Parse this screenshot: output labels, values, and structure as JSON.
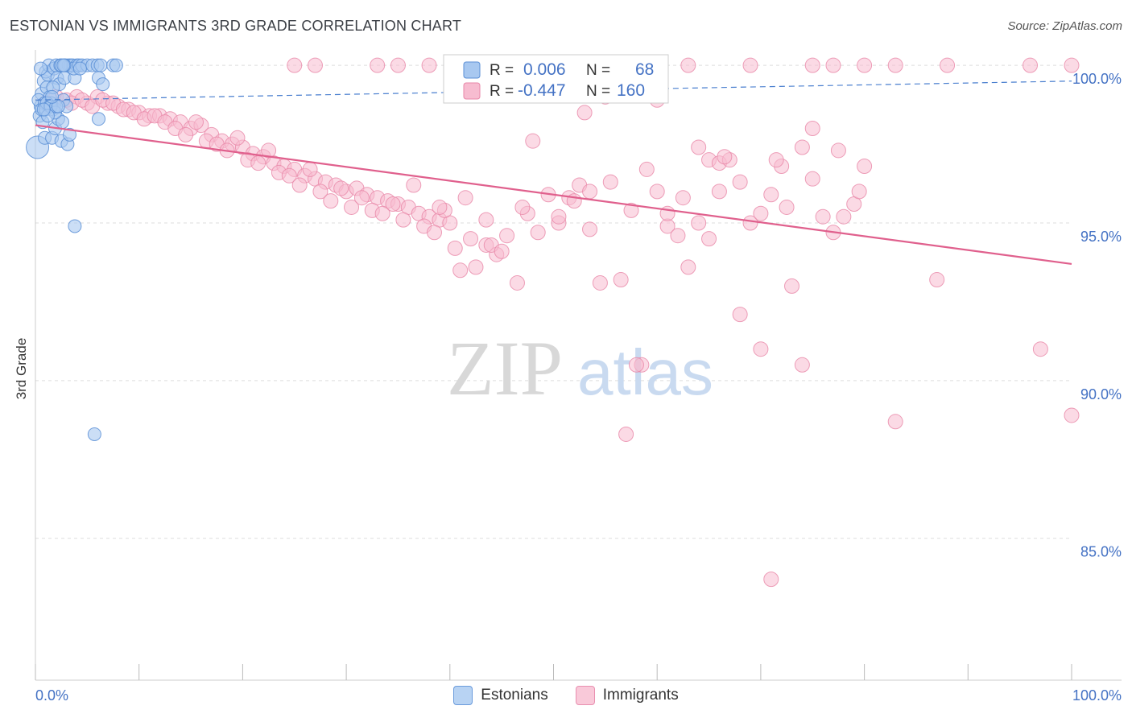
{
  "header": {
    "title": "ESTONIAN VS IMMIGRANTS 3RD GRADE CORRELATION CHART",
    "source": "Source: ZipAtlas.com"
  },
  "watermark": {
    "zip": "ZIP",
    "atlas": "atlas"
  },
  "colors": {
    "blue_fill": "#a8c8f0",
    "blue_stroke": "#5b8fd6",
    "blue_line": "#4a7fcf",
    "pink_fill": "#f7bcd0",
    "pink_stroke": "#e887a8",
    "pink_line": "#e0608d",
    "tick_label": "#4472c4",
    "grid": "#dddddd"
  },
  "legend_box": {
    "rows": [
      {
        "r_label": "R =",
        "r_value": "0.006",
        "n_label": "N =",
        "n_value": "68"
      },
      {
        "r_label": "R =",
        "r_value": "-0.447",
        "n_label": "N =",
        "n_value": "160"
      }
    ]
  },
  "legend_bottom": {
    "items": [
      "Estonians",
      "Immigrants"
    ]
  },
  "chart_data": {
    "type": "scatter",
    "title": "ESTONIAN VS IMMIGRANTS 3RD GRADE CORRELATION CHART",
    "xlabel": "",
    "ylabel": "3rd Grade",
    "xlim": [
      0,
      100
    ],
    "ylim": [
      80.5,
      101
    ],
    "x_tick_labels": [
      "0.0%",
      "100.0%"
    ],
    "y_ticks": [
      100,
      95,
      90,
      85
    ],
    "y_tick_labels": [
      "100.0%",
      "95.0%",
      "90.0%",
      "85.0%"
    ],
    "grid": true,
    "legend_position": "top-center",
    "series": [
      {
        "name": "Estonians",
        "r": 0.006,
        "n": 68,
        "trend": [
          [
            0,
            98.9
          ],
          [
            100,
            99.5
          ]
        ],
        "points": [
          [
            0.2,
            97.4
          ],
          [
            0.4,
            98.4
          ],
          [
            0.5,
            98.7
          ],
          [
            0.6,
            99.1
          ],
          [
            0.7,
            98.2
          ],
          [
            0.8,
            99.5
          ],
          [
            0.9,
            97.7
          ],
          [
            1.0,
            99.8
          ],
          [
            1.1,
            99.3
          ],
          [
            1.2,
            99.7
          ],
          [
            1.3,
            100.0
          ],
          [
            1.4,
            99.0
          ],
          [
            1.5,
            98.8
          ],
          [
            1.6,
            97.7
          ],
          [
            1.7,
            98.6
          ],
          [
            1.8,
            99.9
          ],
          [
            1.9,
            98.0
          ],
          [
            2.0,
            100.0
          ],
          [
            2.1,
            99.6
          ],
          [
            2.2,
            98.3
          ],
          [
            2.3,
            99.4
          ],
          [
            2.4,
            100.0
          ],
          [
            2.5,
            97.6
          ],
          [
            2.6,
            98.2
          ],
          [
            2.7,
            98.9
          ],
          [
            2.8,
            99.6
          ],
          [
            2.9,
            100.0
          ],
          [
            3.0,
            98.7
          ],
          [
            3.1,
            97.5
          ],
          [
            3.2,
            100.0
          ],
          [
            3.3,
            97.8
          ],
          [
            3.4,
            100.0
          ],
          [
            3.6,
            100.0
          ],
          [
            3.8,
            99.6
          ],
          [
            4.0,
            100.0
          ],
          [
            3.7,
            99.9
          ],
          [
            4.2,
            100.0
          ],
          [
            4.5,
            100.0
          ],
          [
            0.3,
            98.9
          ],
          [
            0.5,
            99.9
          ],
          [
            0.6,
            98.6
          ],
          [
            0.9,
            98.8
          ],
          [
            1.0,
            98.6
          ],
          [
            1.1,
            98.8
          ],
          [
            1.4,
            98.7
          ],
          [
            1.5,
            98.7
          ],
          [
            1.7,
            99.3
          ],
          [
            1.9,
            98.5
          ],
          [
            2.0,
            98.7
          ],
          [
            2.2,
            98.7
          ],
          [
            2.5,
            100.0
          ],
          [
            2.8,
            100.0
          ],
          [
            5.0,
            100.0
          ],
          [
            5.5,
            100.0
          ],
          [
            6.0,
            100.0
          ],
          [
            6.3,
            100.0
          ],
          [
            7.5,
            100.0
          ],
          [
            7.8,
            100.0
          ],
          [
            6.1,
            99.6
          ],
          [
            6.5,
            99.4
          ],
          [
            4.3,
            99.9
          ],
          [
            1.2,
            98.4
          ],
          [
            0.8,
            98.6
          ],
          [
            1.6,
            99.0
          ],
          [
            2.7,
            100.0
          ],
          [
            3.8,
            94.9
          ],
          [
            6.1,
            98.3
          ],
          [
            5.7,
            88.3
          ]
        ]
      },
      {
        "name": "Immigrants",
        "r": -0.447,
        "n": 160,
        "trend": [
          [
            0,
            98.1
          ],
          [
            100,
            93.7
          ]
        ],
        "points": [
          [
            1.0,
            98.8
          ],
          [
            2.0,
            99.0
          ],
          [
            3.0,
            98.9
          ],
          [
            4.0,
            99.0
          ],
          [
            5.0,
            98.8
          ],
          [
            6.0,
            99.0
          ],
          [
            7.0,
            98.8
          ],
          [
            8.0,
            98.7
          ],
          [
            9.0,
            98.6
          ],
          [
            10.0,
            98.5
          ],
          [
            11.0,
            98.4
          ],
          [
            12.0,
            98.4
          ],
          [
            13.0,
            98.3
          ],
          [
            14.0,
            98.2
          ],
          [
            15.0,
            98.0
          ],
          [
            16.0,
            98.1
          ],
          [
            17.0,
            97.8
          ],
          [
            18.0,
            97.6
          ],
          [
            19.0,
            97.5
          ],
          [
            20.0,
            97.4
          ],
          [
            21.0,
            97.2
          ],
          [
            22.0,
            97.1
          ],
          [
            23.0,
            96.9
          ],
          [
            24.0,
            96.8
          ],
          [
            25.0,
            96.7
          ],
          [
            26.0,
            96.5
          ],
          [
            27.0,
            96.4
          ],
          [
            28.0,
            96.3
          ],
          [
            29.0,
            96.2
          ],
          [
            30.0,
            96.0
          ],
          [
            31.0,
            96.1
          ],
          [
            32.0,
            95.9
          ],
          [
            33.0,
            95.8
          ],
          [
            34.0,
            95.7
          ],
          [
            35.0,
            95.6
          ],
          [
            36.0,
            95.5
          ],
          [
            37.0,
            95.3
          ],
          [
            38.0,
            95.2
          ],
          [
            39.0,
            95.1
          ],
          [
            40.0,
            95.0
          ],
          [
            3.5,
            98.8
          ],
          [
            4.5,
            98.9
          ],
          [
            5.5,
            98.7
          ],
          [
            6.5,
            98.9
          ],
          [
            7.5,
            98.8
          ],
          [
            8.5,
            98.6
          ],
          [
            9.5,
            98.5
          ],
          [
            10.5,
            98.3
          ],
          [
            11.5,
            98.4
          ],
          [
            12.5,
            98.2
          ],
          [
            13.5,
            98.0
          ],
          [
            14.5,
            97.8
          ],
          [
            15.5,
            98.2
          ],
          [
            16.5,
            97.6
          ],
          [
            17.5,
            97.5
          ],
          [
            18.5,
            97.3
          ],
          [
            19.5,
            97.7
          ],
          [
            20.5,
            97.0
          ],
          [
            21.5,
            96.9
          ],
          [
            22.5,
            97.3
          ],
          [
            23.5,
            96.6
          ],
          [
            24.5,
            96.5
          ],
          [
            25.5,
            96.2
          ],
          [
            26.5,
            96.7
          ],
          [
            27.5,
            96.0
          ],
          [
            28.5,
            95.7
          ],
          [
            29.5,
            96.1
          ],
          [
            30.5,
            95.5
          ],
          [
            31.5,
            95.8
          ],
          [
            32.5,
            95.4
          ],
          [
            33.5,
            95.3
          ],
          [
            34.5,
            95.6
          ],
          [
            35.5,
            95.1
          ],
          [
            36.5,
            96.2
          ],
          [
            37.5,
            94.9
          ],
          [
            38.5,
            94.7
          ],
          [
            39.5,
            95.4
          ],
          [
            40.5,
            94.2
          ],
          [
            41.5,
            95.8
          ],
          [
            42.5,
            93.6
          ],
          [
            43.5,
            94.3
          ],
          [
            44.5,
            94.0
          ],
          [
            45.5,
            94.6
          ],
          [
            46.5,
            93.1
          ],
          [
            47.5,
            95.3
          ],
          [
            48.5,
            94.7
          ],
          [
            49.5,
            95.9
          ],
          [
            50.5,
            95.0
          ],
          [
            51.5,
            95.8
          ],
          [
            52.5,
            96.2
          ],
          [
            53.5,
            94.8
          ],
          [
            54.5,
            93.1
          ],
          [
            55.5,
            96.3
          ],
          [
            56.5,
            93.2
          ],
          [
            57.5,
            95.4
          ],
          [
            58.5,
            90.5
          ],
          [
            59.0,
            96.7
          ],
          [
            60.0,
            96.0
          ],
          [
            61.0,
            94.9
          ],
          [
            62.0,
            94.6
          ],
          [
            63.0,
            93.6
          ],
          [
            64.0,
            97.4
          ],
          [
            65.0,
            97.0
          ],
          [
            66.0,
            96.9
          ],
          [
            67.0,
            97.0
          ],
          [
            68.0,
            96.3
          ],
          [
            69.0,
            95.0
          ],
          [
            70.0,
            95.3
          ],
          [
            71.0,
            95.9
          ],
          [
            72.0,
            96.8
          ],
          [
            73.0,
            93.0
          ],
          [
            74.0,
            97.4
          ],
          [
            75.0,
            96.4
          ],
          [
            76.0,
            95.2
          ],
          [
            77.0,
            94.7
          ],
          [
            78.0,
            95.2
          ],
          [
            79.0,
            95.6
          ],
          [
            80.0,
            96.8
          ],
          [
            66.5,
            97.1
          ],
          [
            71.5,
            97.0
          ],
          [
            25.0,
            100.0
          ],
          [
            27.0,
            100.0
          ],
          [
            33.0,
            100.0
          ],
          [
            35.0,
            100.0
          ],
          [
            38.0,
            100.0
          ],
          [
            43.0,
            100.0
          ],
          [
            50.0,
            100.0
          ],
          [
            63.0,
            100.0
          ],
          [
            69.0,
            100.0
          ],
          [
            75.0,
            100.0
          ],
          [
            77.0,
            100.0
          ],
          [
            80.0,
            100.0
          ],
          [
            83.0,
            100.0
          ],
          [
            88.0,
            100.0
          ],
          [
            96.0,
            100.0
          ],
          [
            100.0,
            100.0
          ],
          [
            60.3,
            99.1
          ],
          [
            55.0,
            99.0
          ],
          [
            60.0,
            98.9
          ],
          [
            53.0,
            98.5
          ],
          [
            48.0,
            97.6
          ],
          [
            53.5,
            96.0
          ],
          [
            52.0,
            95.7
          ],
          [
            44.0,
            94.3
          ],
          [
            41.0,
            93.5
          ],
          [
            50.5,
            95.2
          ],
          [
            58.0,
            90.5
          ],
          [
            70.0,
            91.0
          ],
          [
            68.0,
            92.1
          ],
          [
            87.0,
            93.2
          ],
          [
            74.0,
            90.5
          ],
          [
            57.0,
            88.3
          ],
          [
            83.0,
            88.7
          ],
          [
            97.0,
            91.0
          ],
          [
            100.0,
            88.9
          ],
          [
            71.0,
            83.7
          ],
          [
            75.0,
            98.0
          ],
          [
            77.5,
            97.3
          ],
          [
            79.5,
            96.0
          ],
          [
            72.5,
            95.5
          ],
          [
            64.0,
            95.0
          ],
          [
            65.0,
            94.5
          ],
          [
            66.0,
            96.0
          ],
          [
            62.5,
            95.8
          ],
          [
            61.0,
            95.3
          ],
          [
            47.0,
            95.5
          ],
          [
            45.0,
            94.1
          ],
          [
            43.5,
            95.1
          ],
          [
            42.0,
            94.5
          ],
          [
            39.0,
            95.5
          ]
        ]
      }
    ]
  }
}
